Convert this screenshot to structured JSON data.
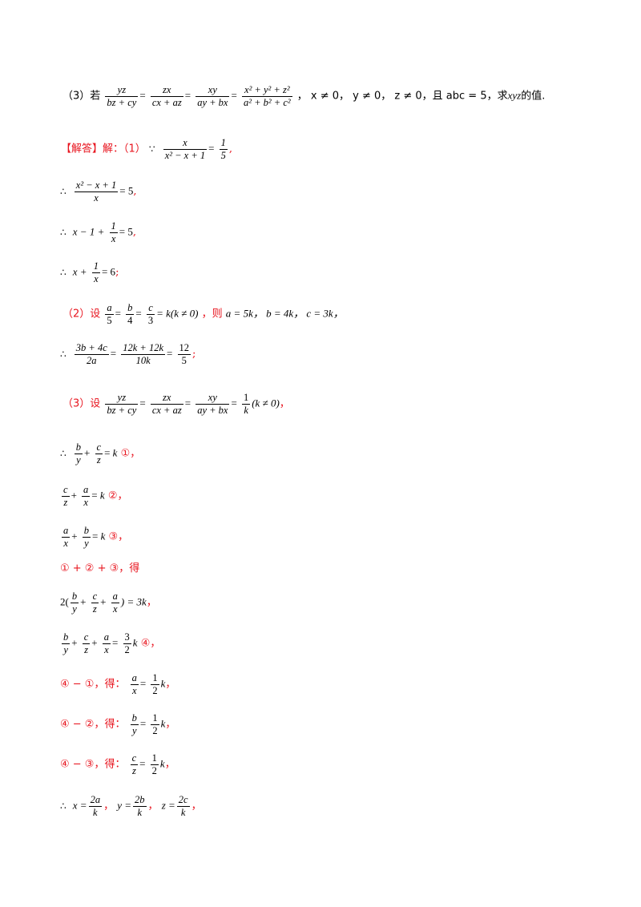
{
  "page": {
    "q3_prefix": "（3）若",
    "q3_frac1_num": "yz",
    "q3_frac1_den": "bz + cy",
    "q3_frac2_num": "zx",
    "q3_frac2_den": "cx + az",
    "q3_frac3_num": "xy",
    "q3_frac3_den": "ay + bx",
    "q3_frac4_num": "x² + y² + z²",
    "q3_frac4_den": "a² + b² + c²",
    "q3_conds": "，  x ≠ 0，  y ≠ 0，  z ≠ 0，且 abc = 5，求",
    "q3_xyz": "xyz",
    "q3_tail": "的值.",
    "ans_label": "【解答】解：（1）",
    "ans1_frac_num": "x",
    "ans1_frac_den": "x² − x + 1",
    "ans1_rhs_num": "1",
    "ans1_rhs_den": "5",
    "s1_num": "x² − x + 1",
    "s1_den": "x",
    "s1_rhs": "= 5",
    "s2_a": "x − 1 +",
    "s2_num": "1",
    "s2_den": "x",
    "s2_rhs": "= 5",
    "s3_a": "x +",
    "s3_num": "1",
    "s3_den": "x",
    "s3_rhs": "= 6",
    "p2_label": "（2）设",
    "p2_rel": "= k(k ≠ 0)",
    "p2_then": "，则",
    "p2_vals": "a = 5k，  b = 4k，  c = 3k，",
    "p2_res_n1": "3b + 4c",
    "p2_res_d1": "2a",
    "p2_res_n2": "12k + 12k",
    "p2_res_d2": "10k",
    "p2_res_n3": "12",
    "p2_res_d3": "5",
    "p3_label": "（3）设",
    "p3_rel": "(k ≠ 0)",
    "eq1_mark": "①，",
    "eq2_mark": "②，",
    "eq3_mark": "③，",
    "sum_line": "① + ② + ③，得",
    "sum_eq": "2(",
    "sum_eq_tail": ") = 3k",
    "eq4_mark": "④，",
    "d1_label": "④ − ①，得：",
    "d2_label": "④ − ②，得：",
    "d3_label": "④ − ③，得：",
    "final_x": "x =",
    "final_y": "y =",
    "final_z": "z ="
  }
}
